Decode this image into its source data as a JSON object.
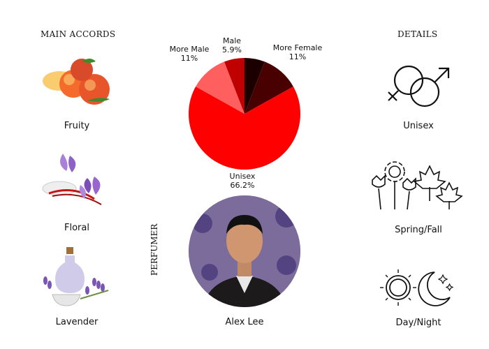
{
  "accords": {
    "heading": "MAIN ACCORDS",
    "items": [
      {
        "label": "Fruity",
        "icon": "peach-icon"
      },
      {
        "label": "Floral",
        "icon": "saffron-flower-icon"
      },
      {
        "label": "Lavender",
        "icon": "lavender-icon"
      }
    ]
  },
  "details": {
    "heading": "DETAILS",
    "items": [
      {
        "label": "Unisex",
        "icon": "gender-symbols-icon"
      },
      {
        "label": "Spring/Fall",
        "icon": "flowers-leaves-icon"
      },
      {
        "label": "Day/Night",
        "icon": "sun-moon-icon"
      }
    ]
  },
  "perfumer": {
    "heading": "PERFUMER",
    "name": "Alex Lee"
  },
  "chart_data": {
    "type": "pie",
    "start": "top",
    "direction": "clockwise",
    "slices": [
      {
        "value": 5.9,
        "label": "",
        "color": "#1c0000"
      },
      {
        "value": 11,
        "label": "More Female",
        "display": "11%",
        "color": "#480000"
      },
      {
        "value": 66.2,
        "label": "Unisex",
        "display": "66.2%",
        "color": "#ff0000"
      },
      {
        "value": 11,
        "label": "More Male",
        "display": "11%",
        "color": "#ff5f5f"
      },
      {
        "value": 5.9,
        "label": "Male",
        "display": "5.9%",
        "color": "#c00000"
      }
    ]
  }
}
